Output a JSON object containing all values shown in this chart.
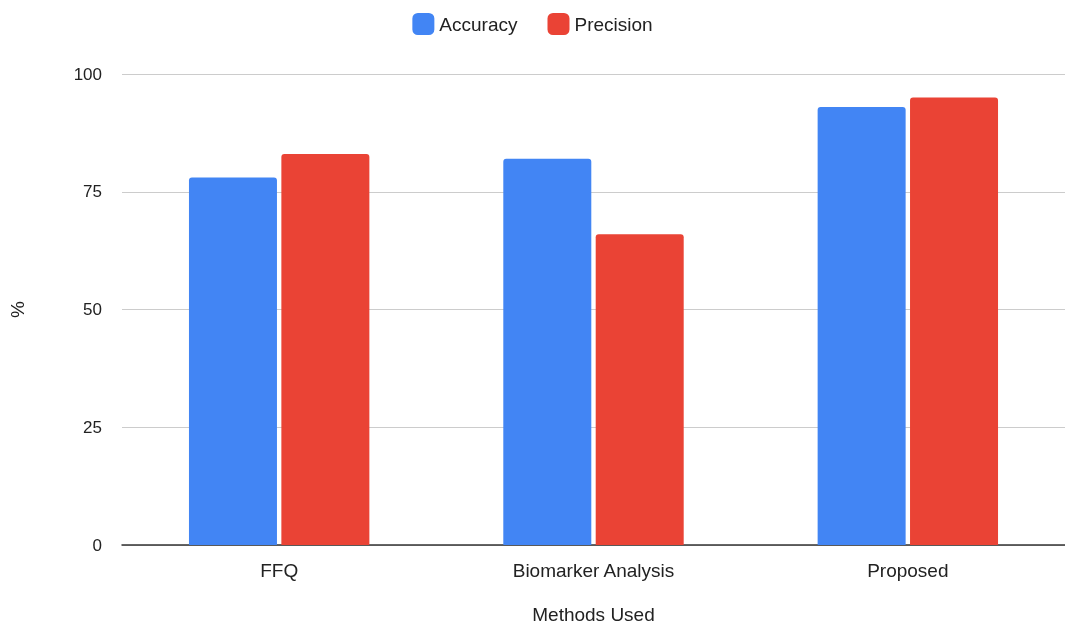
{
  "chart_data": {
    "type": "bar",
    "xlabel": "Methods Used",
    "ylabel": "%",
    "categories": [
      "FFQ",
      "Biomarker Analysis",
      "Proposed"
    ],
    "series": [
      {
        "name": "Accuracy",
        "color": "#4285f4",
        "values": [
          78,
          82,
          93
        ]
      },
      {
        "name": "Precision",
        "color": "#ea4335",
        "values": [
          83,
          66,
          95
        ]
      }
    ],
    "ylim": [
      0,
      100
    ],
    "yticks": [
      0,
      25,
      50,
      75,
      100
    ],
    "grid": "y",
    "legend": "top"
  }
}
